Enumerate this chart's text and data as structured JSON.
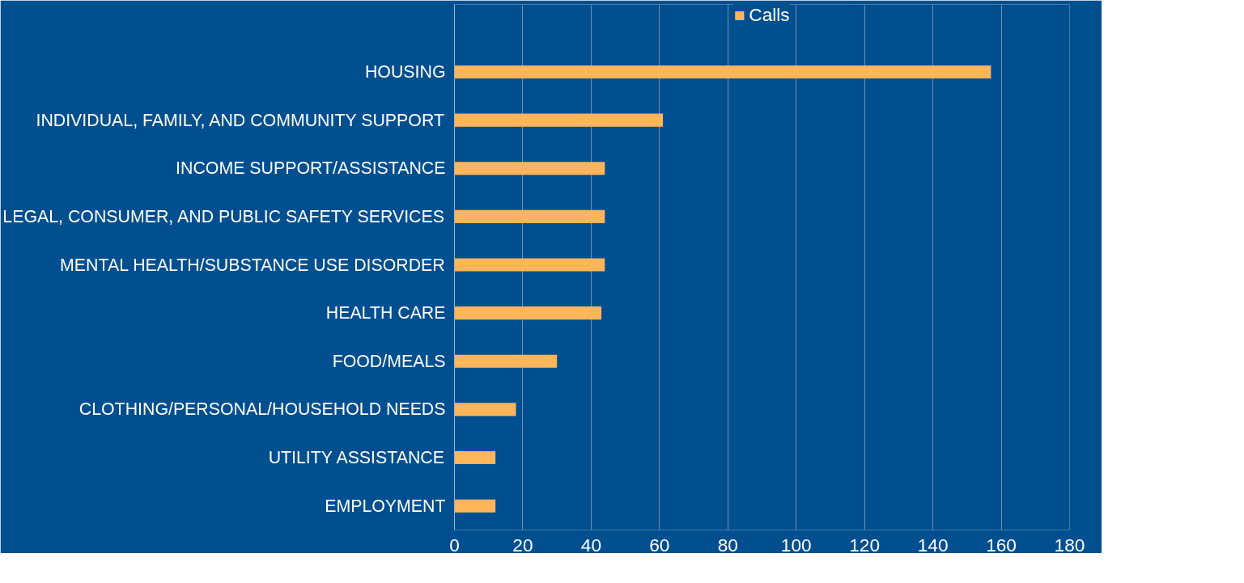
{
  "chart_data": {
    "type": "bar",
    "orientation": "horizontal",
    "categories": [
      "HOUSING",
      "INDIVIDUAL, FAMILY, AND COMMUNITY SUPPORT",
      "INCOME SUPPORT/ASSISTANCE",
      "LEGAL, CONSUMER, AND PUBLIC SAFETY SERVICES",
      "MENTAL HEALTH/SUBSTANCE USE DISORDER",
      "HEALTH CARE",
      "FOOD/MEALS",
      "CLOTHING/PERSONAL/HOUSEHOLD NEEDS",
      "UTILITY ASSISTANCE",
      "EMPLOYMENT"
    ],
    "series": [
      {
        "name": "Calls",
        "color": "#ffb55a",
        "values": [
          157,
          61,
          44,
          44,
          44,
          43,
          30,
          18,
          12,
          12
        ]
      }
    ],
    "xlim": [
      0,
      180
    ],
    "xticks": [
      0,
      20,
      40,
      60,
      80,
      100,
      120,
      140,
      160,
      180
    ],
    "grid": "x",
    "legend": "top"
  }
}
